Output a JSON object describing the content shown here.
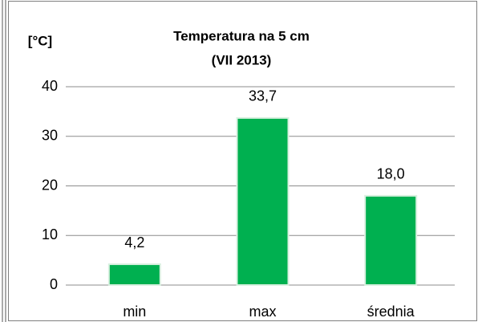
{
  "chart_data": {
    "type": "bar",
    "title": "Temperatura na 5 cm",
    "subtitle": "(VII 2013)",
    "y_label": "[°C]",
    "categories": [
      "min",
      "max",
      "średnia"
    ],
    "values": [
      4.2,
      33.7,
      18.0
    ],
    "value_labels": [
      "4,2",
      "33,7",
      "18,0"
    ],
    "color": "#00b050",
    "ylim": [
      0,
      40
    ],
    "yticks": [
      0,
      10,
      20,
      30,
      40
    ],
    "grid": true
  }
}
